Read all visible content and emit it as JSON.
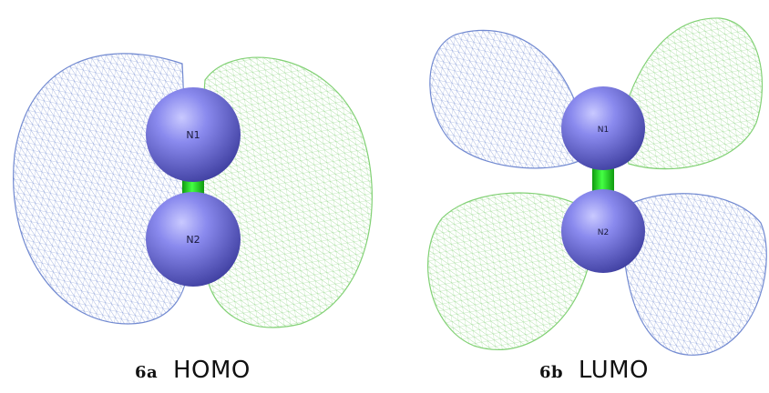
{
  "panels": [
    {
      "id_label": "6a",
      "title": "HOMO",
      "atoms": [
        "N1",
        "N2"
      ]
    },
    {
      "id_label": "6b",
      "title": "LUMO",
      "atoms": [
        "N1",
        "N2"
      ]
    }
  ],
  "colors": {
    "lobe_blue": "#6b84cf",
    "lobe_green": "#7ccf6e",
    "atom": "#6a6ad8",
    "bond": "#22dd22"
  }
}
